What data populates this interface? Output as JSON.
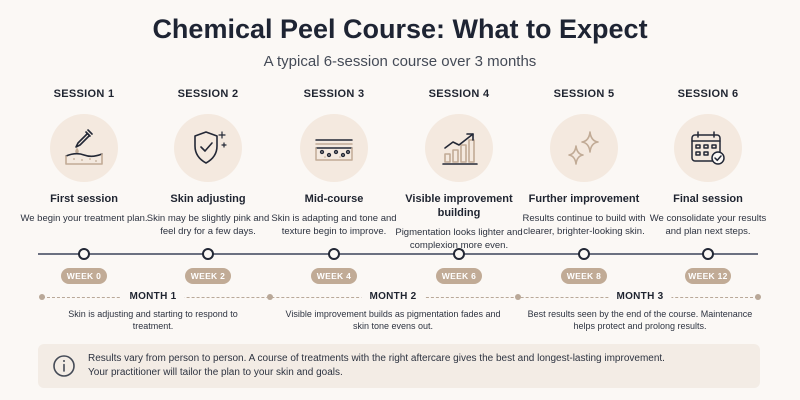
{
  "header": {
    "title": "Chemical Peel Course: What to Expect",
    "subtitle": "A typical 6-session course over 3 months"
  },
  "sessions": [
    {
      "label": "SESSION 1",
      "icon": "dropper-skin-icon",
      "title": "First session",
      "desc": "We begin your treatment plan.",
      "week": "WEEK 0"
    },
    {
      "label": "SESSION 2",
      "icon": "shield-check-icon",
      "title": "Skin adjusting",
      "desc": "Skin may be slightly pink and feel dry for a few days.",
      "week": "WEEK 2"
    },
    {
      "label": "SESSION 3",
      "icon": "skin-texture-icon",
      "title": "Mid-course",
      "desc": "Skin is adapting and tone and texture begin to improve.",
      "week": "WEEK 4"
    },
    {
      "label": "SESSION 4",
      "icon": "bar-chart-trend-icon",
      "title": "Visible improvement building",
      "desc": "Pigmentation looks lighter and complexion more even.",
      "week": "WEEK 6"
    },
    {
      "label": "SESSION 5",
      "icon": "sparkle-icon",
      "title": "Further improvement",
      "desc": "Results continue to build with clearer, brighter-looking skin.",
      "week": "WEEK 8"
    },
    {
      "label": "SESSION 6",
      "icon": "calendar-check-icon",
      "title": "Final session",
      "desc": "We consolidate your results and plan next steps.",
      "week": "WEEK 12"
    }
  ],
  "months": [
    {
      "label": "MONTH 1",
      "desc": "Skin is adjusting and starting to respond to treatment."
    },
    {
      "label": "MONTH 2",
      "desc": "Visible improvement builds as pigmentation fades and skin tone evens out."
    },
    {
      "label": "MONTH 3",
      "desc": "Best results seen by the end of the course. Maintenance helps protect and prolong results."
    }
  ],
  "note": {
    "icon": "info-icon",
    "line1": "Results vary from person to person. A course of treatments with the right aftercare gives the best and longest-lasting improvement.",
    "line2": "Your practitioner will tailor the plan to your skin and goals."
  },
  "colors": {
    "accent": "#c1ab96",
    "icon_bg": "#f4e9df",
    "text": "#1f2430"
  }
}
